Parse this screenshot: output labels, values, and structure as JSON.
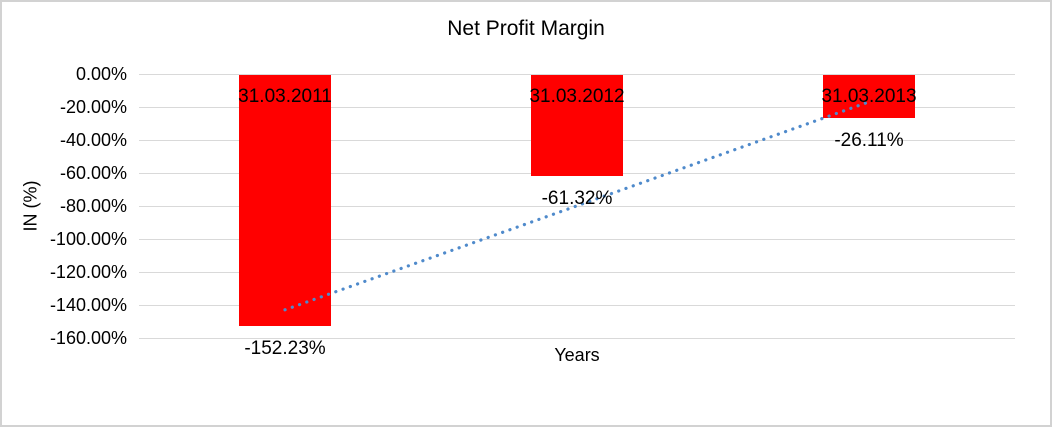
{
  "chart": {
    "title": "Net Profit Margin",
    "y_axis_title": "IN (%)",
    "x_axis_title": "Years",
    "y_tick_labels": [
      "0.00%",
      "-20.00%",
      "-40.00%",
      "-60.00%",
      "-80.00%",
      "-100.00%",
      "-120.00%",
      "-140.00%",
      "-160.00%"
    ]
  },
  "chart_data": {
    "type": "bar",
    "title": "Net Profit Margin",
    "xlabel": "Years",
    "ylabel": "IN (%)",
    "categories": [
      "31.03.2011",
      "31.03.2012",
      "31.03.2013"
    ],
    "values": [
      -152.23,
      -61.32,
      -26.11
    ],
    "value_labels": [
      "-152.23%",
      "-61.32%",
      "-26.11%"
    ],
    "ylim": [
      -160,
      0
    ],
    "y_tick_step": 20,
    "grid": true,
    "legend": "none",
    "bar_color": "#ff0000",
    "gridline_color": "#d9d9d9",
    "label_color": "#000000",
    "trendline": {
      "type": "linear",
      "style": "dotted",
      "color": "#4f8acb",
      "start_value": -142.9,
      "end_value": -16.9
    }
  }
}
